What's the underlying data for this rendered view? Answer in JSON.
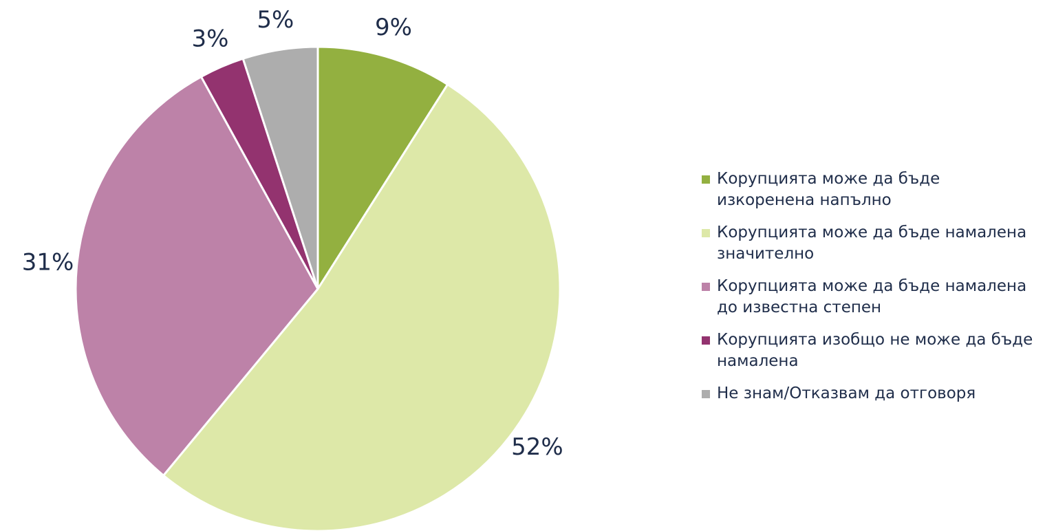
{
  "chart_data": {
    "type": "pie",
    "categories": [
      "Корупцията може да бъде изкоренена напълно",
      "Корупцията може да бъде намалена значително",
      "Корупцията може да бъде намалена до известна степен",
      "Корупцията изобщо не може да бъде намалена",
      "Не знам/Отказвам да отговоря"
    ],
    "values": [
      9,
      52,
      31,
      3,
      5
    ],
    "value_labels": [
      "9%",
      "52%",
      "31%",
      "3%",
      "5%"
    ],
    "colors": [
      "#93b040",
      "#dde8a8",
      "#bd82a8",
      "#93336f",
      "#adadad"
    ],
    "legend": "right"
  }
}
